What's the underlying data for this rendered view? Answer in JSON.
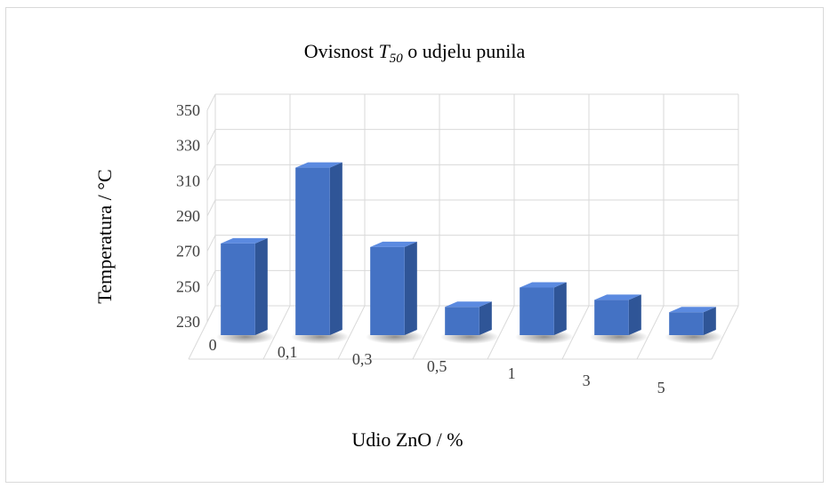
{
  "chart_data": {
    "type": "bar",
    "title": {
      "prefix": "Ovisnost ",
      "symbol": "T",
      "subscript": "50",
      "suffix": " o udjelu  punila"
    },
    "xlabel": "Udio ZnO / %",
    "ylabel": "Temperatura / °C",
    "categories": [
      "0",
      "0,1",
      "0,3",
      "0,5",
      "1",
      "3",
      "5"
    ],
    "values": [
      282,
      325,
      280,
      246,
      257,
      250,
      243
    ],
    "ylim": [
      230,
      350
    ],
    "yticks": [
      "230",
      "250",
      "270",
      "290",
      "310",
      "330",
      "350"
    ],
    "grid": true,
    "legend": "none",
    "colors": {
      "bar_front": "#4472c4",
      "bar_side": "#2f5597",
      "bar_top": "#5b8ae0",
      "grid": "#d9d9d9",
      "text": "#404040"
    }
  }
}
